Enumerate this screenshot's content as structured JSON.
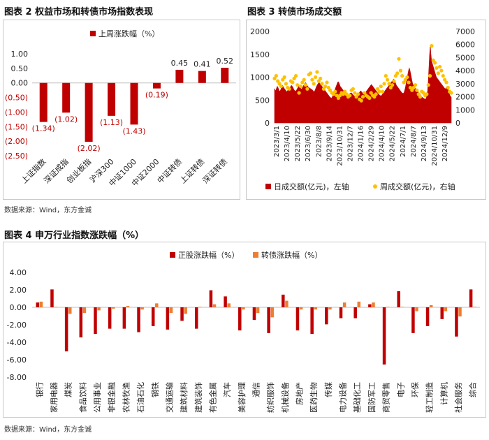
{
  "figures": [
    {
      "title": "图表 2  权益市场和转债市场指数表现"
    },
    {
      "title": "图表 3  转债市场成交额"
    },
    {
      "title": "图表 4    申万行业指数涨跌幅（%）"
    }
  ],
  "sources": {
    "top": "数据来源：Wind，东方金诚",
    "bottom": "数据来源：Wind，东方金诚"
  },
  "colors": {
    "red": "#c00000",
    "orange": "#ed7d31",
    "gold": "#ffc000",
    "negLabel": "#c00000"
  },
  "chart_data": [
    {
      "type": "bar",
      "title": "",
      "legend": [
        "上周涨跌幅（%）"
      ],
      "categories": [
        "上证指数",
        "深证成指",
        "创业板指",
        "沪深300",
        "中证1000",
        "中证2000",
        "中证转债",
        "上证转债",
        "深证转债"
      ],
      "values": [
        -1.34,
        -1.02,
        -2.02,
        -1.13,
        -1.43,
        -0.19,
        0.45,
        0.41,
        0.52
      ],
      "data_labels": [
        "(1.34)",
        "(1.02)",
        "(2.02)",
        "(1.13)",
        "(1.43)",
        "(0.19)",
        "0.45",
        "0.41",
        "0.52"
      ],
      "ylim": [
        -2.5,
        1.0
      ],
      "yticks": [
        1.0,
        0.5,
        0.0,
        -0.5,
        -1.0,
        -1.5,
        -2.0,
        -2.5
      ],
      "ytick_labels": [
        "1.00",
        "0.50",
        "0.00",
        "(0.50)",
        "(1.00)",
        "(1.50)",
        "(2.00)",
        "(2.50)"
      ]
    },
    {
      "type": "area",
      "title": "",
      "series": [
        {
          "name": "日成交额(亿元)，左轴",
          "axis": "left",
          "type": "area"
        },
        {
          "name": "周成交额(亿元)，右轴",
          "axis": "right",
          "type": "scatter"
        }
      ],
      "x_tick_labels": [
        "2023/3/1",
        "2023/4/10",
        "2023/5/22",
        "2023/6/30",
        "2023/8/8",
        "2023/9/14",
        "2023/10/31",
        "2023/12/7",
        "2024/1/16",
        "2024/2/29",
        "2024/4/10",
        "2024/5/22",
        "2024/7/1",
        "2024/8/7",
        "2024/9/13",
        "2024/10/31",
        "2024/12/9"
      ],
      "y_left": {
        "lim": [
          0,
          2000
        ],
        "ticks": [
          0,
          500,
          1000,
          1500,
          2000
        ]
      },
      "y_right": {
        "lim": [
          0,
          7000
        ],
        "ticks": [
          0,
          1000,
          2000,
          3000,
          4000,
          5000,
          6000,
          7000
        ]
      },
      "daily": [
        750,
        720,
        700,
        760,
        800,
        780,
        740,
        700,
        690,
        720,
        760,
        800,
        820,
        780,
        760,
        740,
        720,
        700,
        680,
        700,
        720,
        740,
        760,
        780,
        800,
        820,
        800,
        780,
        750,
        720,
        700,
        690,
        710,
        730,
        760,
        780,
        800,
        790,
        770,
        750,
        740,
        760,
        790,
        820,
        850,
        870,
        880,
        860,
        830,
        800,
        780,
        770,
        760,
        750,
        740,
        730,
        720,
        700,
        680,
        690,
        720,
        760,
        800,
        830,
        850,
        870,
        880,
        860,
        840,
        820,
        800,
        780,
        760,
        740,
        720,
        700,
        680,
        660,
        640,
        620,
        600,
        580,
        560,
        550,
        540,
        560,
        600,
        640,
        680,
        720,
        760,
        800,
        840,
        880,
        900,
        880,
        840,
        800,
        780,
        760,
        740,
        720,
        700,
        680,
        660,
        640,
        620,
        600,
        590,
        600,
        620,
        640,
        650,
        660,
        650,
        630,
        610,
        600,
        590,
        580,
        570,
        560,
        570,
        590,
        620,
        650,
        680,
        700,
        690,
        670,
        650,
        630,
        620,
        640,
        660,
        680,
        700,
        720,
        740,
        760,
        780,
        800,
        820,
        840,
        820,
        800,
        780,
        760,
        740,
        720,
        700,
        680,
        660,
        640,
        620,
        610,
        600,
        590,
        600,
        620,
        640,
        660,
        680,
        700,
        720,
        740,
        760,
        780,
        800,
        820,
        840,
        860,
        880,
        900,
        920,
        940,
        960,
        940,
        900,
        860,
        820,
        800,
        780,
        760,
        740,
        720,
        700,
        680,
        660,
        650,
        640,
        660,
        700,
        760,
        840,
        920,
        1000,
        1080,
        1150,
        1200,
        1150,
        1080,
        1000,
        920,
        860,
        820,
        800,
        780,
        760,
        740,
        720,
        700,
        680,
        660,
        640,
        620,
        600,
        580,
        560,
        550,
        540,
        530,
        520,
        520,
        540,
        600,
        700,
        900,
        1200,
        1500,
        1700,
        1500,
        1350,
        1300,
        1250,
        1200,
        1150,
        1100,
        1050,
        1000,
        980,
        960,
        940,
        920,
        900,
        880,
        860,
        840,
        820,
        800,
        780,
        760,
        740,
        760,
        780,
        800,
        760,
        700,
        640,
        600,
        580,
        560
      ],
      "weekly": [
        3400,
        3600,
        3200,
        3000,
        2800,
        3300,
        3500,
        3000,
        2700,
        2600,
        3200,
        3100,
        3400,
        3600,
        2900,
        2300,
        2800,
        3100,
        3300,
        2900,
        2600,
        3700,
        3800,
        3300,
        3000,
        3500,
        3900,
        3200,
        3400,
        3000,
        2600,
        2800,
        3100,
        2700,
        2500,
        2300,
        2200,
        2400,
        2100,
        1900,
        2100,
        2300,
        2200,
        2400,
        2200,
        2000,
        2100,
        2500,
        2600,
        2300,
        2000,
        2200,
        1800,
        1700,
        2000,
        2300,
        2100,
        2000,
        1900,
        2300,
        2100,
        2000,
        2200,
        2600,
        2400,
        2800,
        2400,
        3000,
        3600,
        3300,
        3000,
        2700,
        2900,
        3200,
        3600,
        3800,
        4900,
        4000,
        3600,
        3100,
        3300,
        3500,
        3100,
        2700,
        2500,
        2700,
        2900,
        2500,
        2200,
        2000,
        2400,
        2300,
        2100,
        2200,
        2900,
        3600,
        5900,
        4800,
        4600,
        4200,
        3800,
        4300,
        4000,
        3600,
        3300,
        3100,
        2700,
        2400,
        2300
      ]
    },
    {
      "type": "bar",
      "title": "",
      "series": [
        {
          "name": "正股涨跌幅（%）",
          "values": [
            0.55,
            2.05,
            -5.05,
            -3.45,
            -3.05,
            -2.45,
            -2.45,
            -2.85,
            -2.15,
            -2.55,
            -1.55,
            -2.45,
            1.95,
            1.25,
            -2.65,
            -1.45,
            -2.95,
            1.45,
            -2.65,
            -3.05,
            -1.95,
            -1.25,
            -1.25,
            0.35,
            -6.55,
            1.85,
            -2.95,
            -2.15,
            -1.35,
            -3.35,
            2.05
          ]
        },
        {
          "name": "转债涨跌幅（%）",
          "values": [
            0.65,
            0.05,
            -0.75,
            -0.65,
            -0.35,
            -0.15,
            0.15,
            -0.25,
            0.45,
            -0.65,
            -0.75,
            0.05,
            0.35,
            0.45,
            -0.25,
            -0.65,
            -1.15,
            0.75,
            -0.25,
            -0.25,
            -0.25,
            0.55,
            0.65,
            0.55,
            0.05,
            0.05,
            -0.45,
            0.25,
            -0.45,
            -1.05,
            0.05
          ]
        }
      ],
      "categories": [
        "银行",
        "家用电器",
        "煤炭",
        "食品饮料",
        "公用事业",
        "非银金融",
        "农林牧渔",
        "石油石化",
        "钢铁",
        "交通运输",
        "建筑材料",
        "建筑装饰",
        "有色金属",
        "汽车",
        "美容护理",
        "通信",
        "纺织服饰",
        "机械设备",
        "房地产",
        "医药生物",
        "传媒",
        "电力设备",
        "基础化工",
        "国防军工",
        "商贸零售",
        "电子",
        "环保",
        "轻工制造",
        "计算机",
        "社会服务",
        "综合"
      ],
      "ylim": [
        -8.0,
        4.0
      ],
      "yticks": [
        4.0,
        2.0,
        0.0,
        -2.0,
        -4.0,
        -6.0,
        -8.0
      ],
      "ytick_labels": [
        "4.00",
        "2.00",
        "0.00",
        "-2.00",
        "-4.00",
        "-6.00",
        "-8.00"
      ]
    }
  ]
}
